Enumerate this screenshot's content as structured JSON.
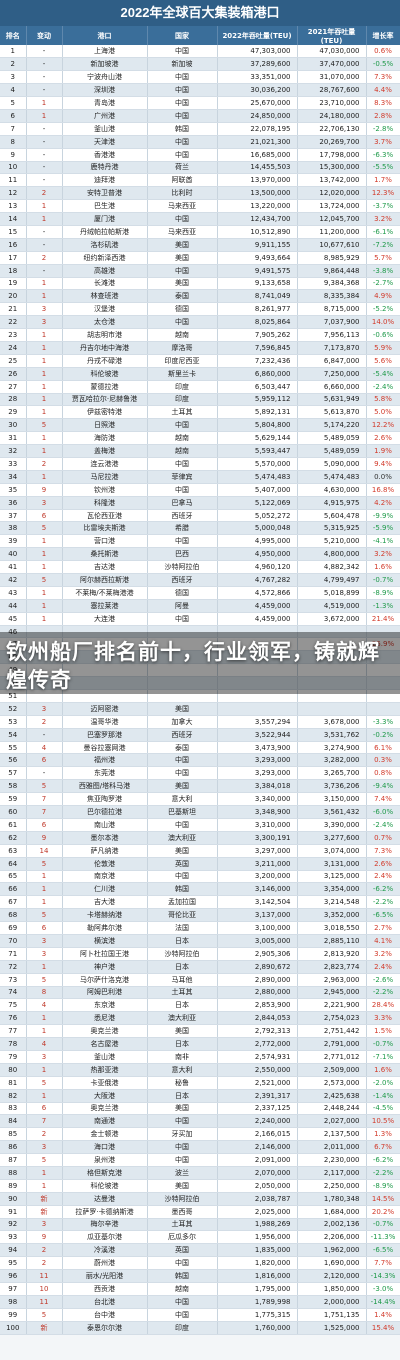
{
  "chart_data": {
    "type": "table",
    "title": "2022年全球百大集装箱港口",
    "columns": [
      "排名",
      "变动",
      "港口",
      "国家",
      "2022年吞吐量(TEU)",
      "2021年吞吐量(TEU)",
      "增长率"
    ],
    "rows": [
      [
        "1",
        "-",
        "上海港",
        "中国",
        "47,303,000",
        "47,030,000",
        "0.6%"
      ],
      [
        "2",
        "-",
        "新加坡港",
        "新加坡",
        "37,289,600",
        "37,470,000",
        "-0.5%"
      ],
      [
        "3",
        "-",
        "宁波舟山港",
        "中国",
        "33,351,000",
        "31,070,000",
        "7.3%"
      ],
      [
        "4",
        "-",
        "深圳港",
        "中国",
        "30,036,200",
        "28,767,600",
        "4.4%"
      ],
      [
        "5",
        "1",
        "青岛港",
        "中国",
        "25,670,000",
        "23,710,000",
        "8.3%"
      ],
      [
        "6",
        "1",
        "广州港",
        "中国",
        "24,850,000",
        "24,180,000",
        "2.8%"
      ],
      [
        "7",
        "-",
        "釜山港",
        "韩国",
        "22,078,195",
        "22,706,130",
        "-2.8%"
      ],
      [
        "8",
        "-",
        "天津港",
        "中国",
        "21,021,300",
        "20,269,700",
        "3.7%"
      ],
      [
        "9",
        "-",
        "香港港",
        "中国",
        "16,685,000",
        "17,798,000",
        "-6.3%"
      ],
      [
        "10",
        "-",
        "鹿特丹港",
        "荷兰",
        "14,455,503",
        "15,300,000",
        "-5.5%"
      ],
      [
        "11",
        "-",
        "迪拜港",
        "阿联酋",
        "13,970,000",
        "13,742,000",
        "1.7%"
      ],
      [
        "12",
        "2",
        "安特卫普港",
        "比利时",
        "13,500,000",
        "12,020,000",
        "12.3%"
      ],
      [
        "13",
        "1",
        "巴生港",
        "马来西亚",
        "13,220,000",
        "13,724,000",
        "-3.7%"
      ],
      [
        "14",
        "1",
        "厦门港",
        "中国",
        "12,434,700",
        "12,045,700",
        "3.2%"
      ],
      [
        "15",
        "-",
        "丹绒帕拉帕斯港",
        "马来西亚",
        "10,512,890",
        "11,200,000",
        "-6.1%"
      ],
      [
        "16",
        "-",
        "洛杉矶港",
        "美国",
        "9,911,155",
        "10,677,610",
        "-7.2%"
      ],
      [
        "17",
        "2",
        "纽约新泽西港",
        "美国",
        "9,493,664",
        "8,985,929",
        "5.7%"
      ],
      [
        "18",
        "-",
        "高雄港",
        "中国",
        "9,491,575",
        "9,864,448",
        "-3.8%"
      ],
      [
        "19",
        "1",
        "长滩港",
        "美国",
        "9,133,658",
        "9,384,368",
        "-2.7%"
      ],
      [
        "20",
        "1",
        "林查班港",
        "泰国",
        "8,741,049",
        "8,335,384",
        "4.9%"
      ],
      [
        "21",
        "3",
        "汉堡港",
        "德国",
        "8,261,977",
        "8,715,000",
        "-5.2%"
      ],
      [
        "22",
        "3",
        "太仓港",
        "中国",
        "8,025,864",
        "7,037,900",
        "14.0%"
      ],
      [
        "23",
        "1",
        "胡志明市港",
        "越南",
        "7,905,262",
        "7,956,113",
        "-0.6%"
      ],
      [
        "24",
        "1",
        "丹吉尔地中海港",
        "摩洛哥",
        "7,596,845",
        "7,173,870",
        "5.9%"
      ],
      [
        "25",
        "1",
        "丹戎不碌港",
        "印度尼西亚",
        "7,232,436",
        "6,847,000",
        "5.6%"
      ],
      [
        "26",
        "1",
        "科伦坡港",
        "斯里兰卡",
        "6,860,000",
        "7,250,000",
        "-5.4%"
      ],
      [
        "27",
        "1",
        "蒙德拉港",
        "印度",
        "6,503,447",
        "6,660,000",
        "-2.4%"
      ],
      [
        "28",
        "1",
        "贾瓦哈拉尔·尼赫鲁港",
        "印度",
        "5,959,112",
        "5,631,949",
        "5.8%"
      ],
      [
        "29",
        "1",
        "伊兹密特港",
        "土耳其",
        "5,892,131",
        "5,613,870",
        "5.0%"
      ],
      [
        "30",
        "5",
        "日照港",
        "中国",
        "5,804,800",
        "5,174,220",
        "12.2%"
      ],
      [
        "31",
        "1",
        "海防港",
        "越南",
        "5,629,144",
        "5,489,059",
        "2.6%"
      ],
      [
        "32",
        "1",
        "盖梅港",
        "越南",
        "5,593,447",
        "5,489,059",
        "1.9%"
      ],
      [
        "33",
        "2",
        "连云港港",
        "中国",
        "5,570,000",
        "5,090,000",
        "9.4%"
      ],
      [
        "34",
        "1",
        "马尼拉港",
        "菲律宾",
        "5,474,483",
        "5,474,483",
        "0.0%"
      ],
      [
        "35",
        "9",
        "钦州港",
        "中国",
        "5,407,000",
        "4,630,000",
        "16.8%"
      ],
      [
        "36",
        "3",
        "科隆港",
        "巴拿马",
        "5,122,069",
        "4,915,975",
        "4.2%"
      ],
      [
        "37",
        "6",
        "瓦伦西亚港",
        "西班牙",
        "5,052,272",
        "5,604,478",
        "-9.9%"
      ],
      [
        "38",
        "5",
        "比雷埃夫斯港",
        "希腊",
        "5,000,048",
        "5,315,925",
        "-5.9%"
      ],
      [
        "39",
        "1",
        "营口港",
        "中国",
        "4,995,000",
        "5,210,000",
        "-4.1%"
      ],
      [
        "40",
        "1",
        "桑托斯港",
        "巴西",
        "4,950,000",
        "4,800,000",
        "3.2%"
      ],
      [
        "41",
        "1",
        "吉达港",
        "沙特阿拉伯",
        "4,960,120",
        "4,882,342",
        "1.6%"
      ],
      [
        "42",
        "5",
        "阿尔赫西拉斯港",
        "西班牙",
        "4,767,282",
        "4,799,497",
        "-0.7%"
      ],
      [
        "43",
        "1",
        "不莱梅/不莱梅港港",
        "德国",
        "4,572,866",
        "5,018,899",
        "-8.9%"
      ],
      [
        "44",
        "1",
        "塞拉莱港",
        "阿曼",
        "4,459,000",
        "4,519,000",
        "-1.3%"
      ],
      [
        "45",
        "1",
        "大连港",
        "中国",
        "4,459,000",
        "3,672,000",
        "21.4%"
      ],
      [
        "46",
        "",
        "",
        "",
        "",
        "",
        ""
      ],
      [
        "47",
        "",
        "",
        "",
        "",
        "",
        "25.9%"
      ],
      [
        "48",
        "",
        "",
        "",
        "",
        "",
        ""
      ],
      [
        "49",
        "",
        "",
        "",
        "",
        "",
        ""
      ],
      [
        "50",
        "",
        "",
        "",
        "",
        "",
        ""
      ],
      [
        "51",
        "",
        "",
        "",
        "",
        "",
        ""
      ],
      [
        "52",
        "3",
        "迈阿密港",
        "美国",
        "",
        "",
        ""
      ],
      [
        "53",
        "2",
        "温哥华港",
        "加拿大",
        "3,557,294",
        "3,678,000",
        "-3.3%"
      ],
      [
        "54",
        "-",
        "巴塞罗那港",
        "西班牙",
        "3,522,944",
        "3,531,762",
        "-0.2%"
      ],
      [
        "55",
        "4",
        "曼谷拉塞网港",
        "泰国",
        "3,473,900",
        "3,274,900",
        "6.1%"
      ],
      [
        "56",
        "6",
        "福州港",
        "中国",
        "3,293,000",
        "3,282,000",
        "0.3%"
      ],
      [
        "57",
        "-",
        "东莞港",
        "中国",
        "3,293,000",
        "3,265,700",
        "0.8%"
      ],
      [
        "58",
        "5",
        "西雅图/塔科马港",
        "美国",
        "3,384,018",
        "3,736,206",
        "-9.4%"
      ],
      [
        "59",
        "7",
        "焦亚陶罗港",
        "意大利",
        "3,340,000",
        "3,150,000",
        "7.4%"
      ],
      [
        "60",
        "7",
        "巴尔德拉港",
        "巴基斯坦",
        "3,348,900",
        "3,561,432",
        "-6.0%"
      ],
      [
        "61",
        "6",
        "南山港",
        "中国",
        "3,310,000",
        "3,390,000",
        "-2.4%"
      ],
      [
        "62",
        "9",
        "墨尔本港",
        "澳大利亚",
        "3,300,191",
        "3,277,600",
        "0.7%"
      ],
      [
        "63",
        "14",
        "萨凡纳港",
        "美国",
        "3,297,000",
        "3,074,000",
        "7.3%"
      ],
      [
        "64",
        "5",
        "伦敦港",
        "英国",
        "3,211,000",
        "3,131,000",
        "2.6%"
      ],
      [
        "65",
        "1",
        "南京港",
        "中国",
        "3,200,000",
        "3,125,000",
        "2.4%"
      ],
      [
        "66",
        "1",
        "仁川港",
        "韩国",
        "3,146,000",
        "3,354,000",
        "-6.2%"
      ],
      [
        "67",
        "1",
        "吉大港",
        "孟加拉国",
        "3,142,504",
        "3,214,548",
        "-2.2%"
      ],
      [
        "68",
        "5",
        "卡塔赫纳港",
        "哥伦比亚",
        "3,137,000",
        "3,352,000",
        "-6.5%"
      ],
      [
        "69",
        "6",
        "勒阿弗尔港",
        "法国",
        "3,100,000",
        "3,018,550",
        "2.7%"
      ],
      [
        "70",
        "3",
        "横滨港",
        "日本",
        "3,005,000",
        "2,885,110",
        "4.1%"
      ],
      [
        "71",
        "3",
        "阿卜杜拉国王港",
        "沙特阿拉伯",
        "2,905,306",
        "2,813,920",
        "3.2%"
      ],
      [
        "72",
        "1",
        "神户港",
        "日本",
        "2,890,672",
        "2,823,774",
        "2.4%"
      ],
      [
        "73",
        "5",
        "马尔萨什洛克港",
        "马耳他",
        "2,890,000",
        "2,963,000",
        "-2.6%"
      ],
      [
        "74",
        "8",
        "阿姆巴利港",
        "土耳其",
        "2,880,000",
        "2,945,000",
        "-2.2%"
      ],
      [
        "75",
        "4",
        "东京港",
        "日本",
        "2,853,900",
        "2,221,900",
        "28.4%"
      ],
      [
        "76",
        "1",
        "悉尼港",
        "澳大利亚",
        "2,844,053",
        "2,754,023",
        "3.3%"
      ],
      [
        "77",
        "1",
        "奥克兰港",
        "美国",
        "2,792,313",
        "2,751,442",
        "1.5%"
      ],
      [
        "78",
        "4",
        "名古屋港",
        "日本",
        "2,772,000",
        "2,791,000",
        "-0.7%"
      ],
      [
        "79",
        "3",
        "釜山港",
        "南非",
        "2,574,931",
        "2,771,012",
        "-7.1%"
      ],
      [
        "80",
        "1",
        "热那亚港",
        "意大利",
        "2,550,000",
        "2,509,000",
        "1.6%"
      ],
      [
        "81",
        "5",
        "卡亚俄港",
        "秘鲁",
        "2,521,000",
        "2,573,000",
        "-2.0%"
      ],
      [
        "82",
        "1",
        "大阪港",
        "日本",
        "2,391,317",
        "2,425,638",
        "-1.4%"
      ],
      [
        "83",
        "6",
        "奥克兰港",
        "美国",
        "2,337,125",
        "2,448,244",
        "-4.5%"
      ],
      [
        "84",
        "7",
        "南通港",
        "中国",
        "2,240,000",
        "2,027,000",
        "10.5%"
      ],
      [
        "85",
        "2",
        "金士顿港",
        "牙买加",
        "2,166,015",
        "2,137,500",
        "1.3%"
      ],
      [
        "86",
        "3",
        "海口港",
        "中国",
        "2,146,000",
        "2,011,000",
        "6.7%"
      ],
      [
        "87",
        "5",
        "泉州港",
        "中国",
        "2,091,000",
        "2,230,000",
        "-6.2%"
      ],
      [
        "88",
        "1",
        "格但斯克港",
        "波兰",
        "2,070,000",
        "2,117,000",
        "-2.2%"
      ],
      [
        "89",
        "1",
        "科伦坡港",
        "美国",
        "2,050,000",
        "2,250,000",
        "-8.9%"
      ],
      [
        "90",
        "新",
        "达曼港",
        "沙特阿拉伯",
        "2,038,787",
        "1,780,348",
        "14.5%"
      ],
      [
        "91",
        "新",
        "拉萨罗·卡德纳斯港",
        "墨西哥",
        "2,025,000",
        "1,684,000",
        "20.2%"
      ],
      [
        "92",
        "3",
        "梅尔辛港",
        "土耳其",
        "1,988,269",
        "2,002,136",
        "-0.7%"
      ],
      [
        "93",
        "9",
        "瓜亚基尔港",
        "厄瓜多尔",
        "1,956,000",
        "2,206,000",
        "-11.3%"
      ],
      [
        "94",
        "2",
        "冷溪港",
        "英国",
        "1,835,000",
        "1,962,000",
        "-6.5%"
      ],
      [
        "95",
        "2",
        "蔚州港",
        "中国",
        "1,820,000",
        "1,690,000",
        "7.7%"
      ],
      [
        "96",
        "11",
        "丽水/光阳港",
        "韩国",
        "1,816,000",
        "2,120,000",
        "-14.3%"
      ],
      [
        "97",
        "10",
        "西贡港",
        "越南",
        "1,795,000",
        "1,850,000",
        "-3.0%"
      ],
      [
        "98",
        "11",
        "台北港",
        "中国",
        "1,789,998",
        "2,000,000",
        "-14.4%"
      ],
      [
        "99",
        "5",
        "台中港",
        "中国",
        "1,775,315",
        "1,751,135",
        "1.4%"
      ],
      [
        "100",
        "新",
        "泰恩尔尔港",
        "印度",
        "1,760,000",
        "1,525,000",
        "15.4%"
      ]
    ]
  },
  "overlay": {
    "headline": "钦州船厂排名前十，行业领军，铸就辉煌传奇"
  },
  "colors": {
    "header_bg": "#2f5e86",
    "up": "#d23a2a",
    "down": "#1f9a4a"
  }
}
